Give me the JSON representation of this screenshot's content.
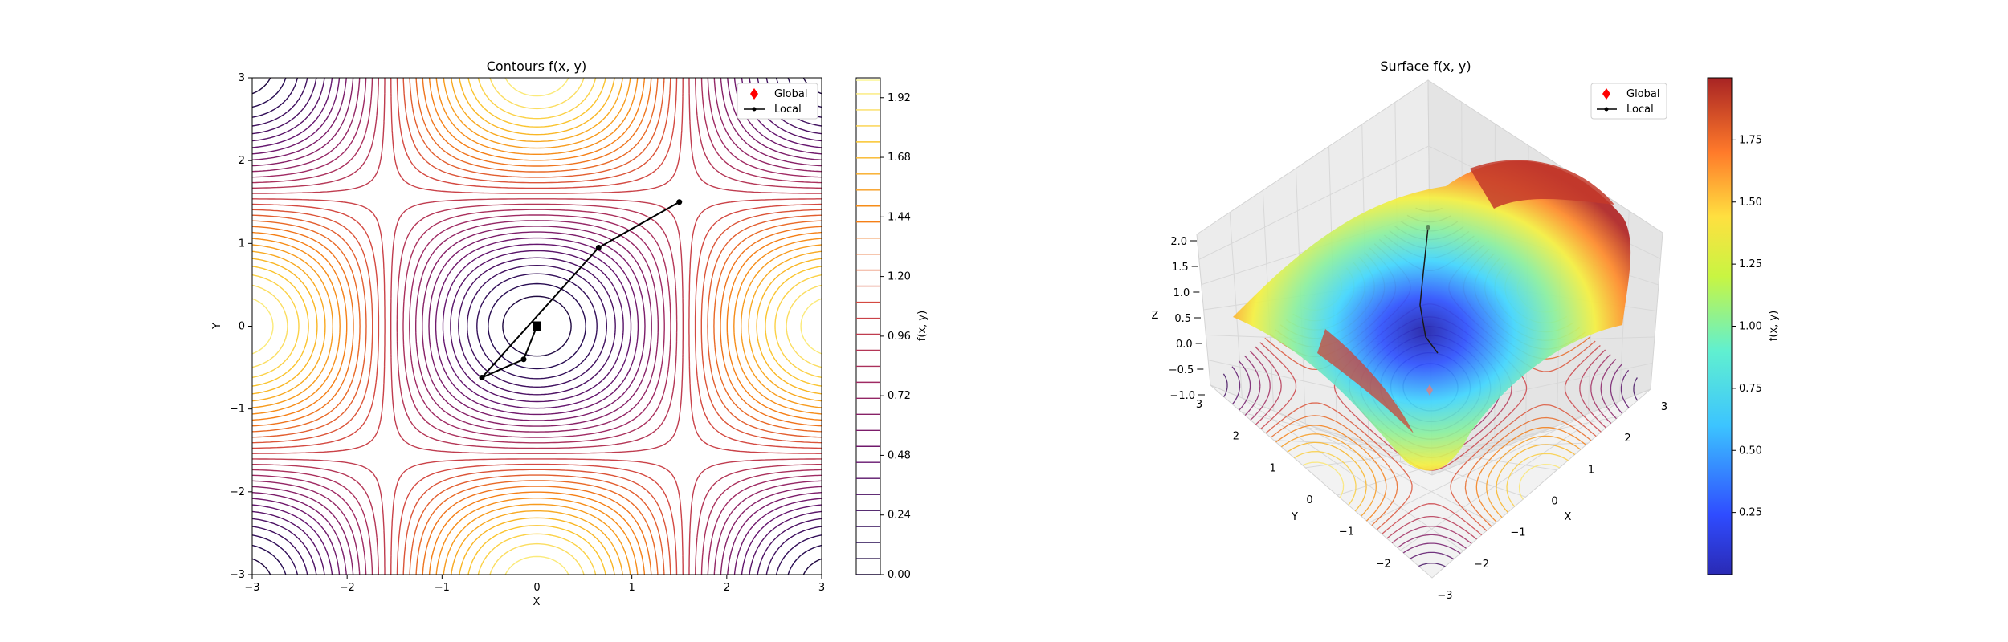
{
  "colors": {
    "contour_colormap": "inferno",
    "surface_colormap": "jet",
    "path_color": "#000000",
    "global_marker_color": "#ff0000"
  },
  "chart_data": [
    {
      "type": "contour",
      "title": "Contours f(x, y)",
      "xlabel": "X",
      "ylabel": "Y",
      "xlim": [
        -3,
        3
      ],
      "ylim": [
        -3,
        3
      ],
      "x_ticks": [
        "−3",
        "−2",
        "−1",
        "0",
        "1",
        "2",
        "3"
      ],
      "y_ticks": [
        "−3",
        "−2",
        "−1",
        "0",
        "1",
        "2",
        "3"
      ],
      "function_description": "f(x,y) = 1 - cos(x)cos(y) style double-cosine surface; minimum 0 at (0,0), maxima ~2 near (±3, 0)",
      "colorbar": {
        "label": "f(x, y)",
        "ticks": [
          "0.00",
          "0.24",
          "0.48",
          "0.72",
          "0.96",
          "1.20",
          "1.44",
          "1.68",
          "1.92"
        ],
        "range": [
          0,
          2
        ]
      },
      "legend": {
        "position": "top-right",
        "entries": [
          {
            "label": "Global",
            "marker": "diamond",
            "color": "#ff0000"
          },
          {
            "label": "Local",
            "marker": "line-with-points",
            "color": "#000000"
          }
        ]
      },
      "series": [
        {
          "name": "Local",
          "x": [
            1.5,
            0.65,
            -0.58,
            -0.14,
            0.0
          ],
          "y": [
            1.5,
            0.95,
            -0.62,
            -0.4,
            0.0
          ]
        },
        {
          "name": "Global",
          "x": [
            0.0
          ],
          "y": [
            0.0
          ]
        }
      ]
    },
    {
      "type": "surface",
      "title": "Surface f(x, y)",
      "xlabel": "X",
      "ylabel": "Y",
      "zlabel": "Z",
      "x_ticks": [
        "−3",
        "−2",
        "−1",
        "0",
        "1",
        "2",
        "3"
      ],
      "y_ticks": [
        "−2",
        "−1",
        "0",
        "1",
        "2",
        "3"
      ],
      "z_ticks": [
        "−1.0",
        "−0.5",
        "0.0",
        "0.5",
        "1.0",
        "1.5",
        "2.0"
      ],
      "colorbar": {
        "label": "f(x, y)",
        "ticks": [
          "0.25",
          "0.50",
          "0.75",
          "1.00",
          "1.25",
          "1.50",
          "1.75"
        ],
        "range": [
          0,
          2
        ]
      },
      "legend": {
        "position": "top-right",
        "entries": [
          {
            "label": "Global",
            "marker": "diamond",
            "color": "#ff0000"
          },
          {
            "label": "Local",
            "marker": "line-with-points",
            "color": "#000000"
          }
        ]
      }
    }
  ]
}
